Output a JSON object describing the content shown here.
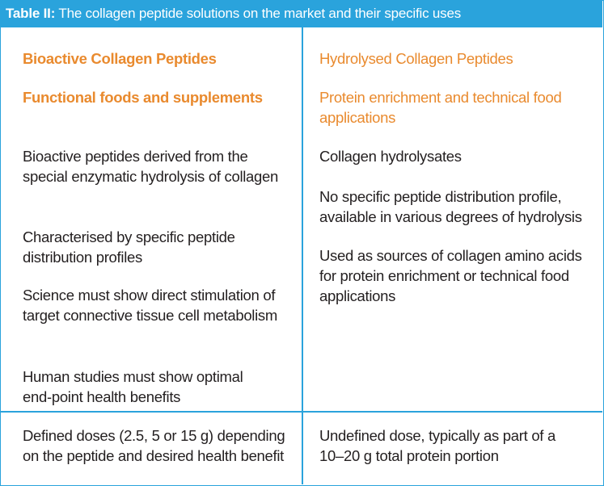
{
  "table": {
    "caption_label": "Table II:",
    "caption_text": " The collagen peptide solutions on the market and their specific uses",
    "left": {
      "heading": "Bioactive Collagen Peptides",
      "subheading": "Functional foods and supplements",
      "points": [
        "Bioactive peptides derived from the special enzymatic hydrolysis of collagen",
        "Characterised by specific peptide distribution profiles",
        "Science must show direct stimulation of target connective tissue cell metabolism",
        "Human studies must show optimal end-point health benefits"
      ],
      "dose": "Defined doses (2.5, 5 or 15 g) depending on the peptide and desired health benefit"
    },
    "right": {
      "heading": "Hydrolysed Collagen Peptides",
      "subheading": "Protein enrichment and technical food applications",
      "points": [
        "Collagen hydrolysates",
        "No specific peptide distribution profile, available in various degrees of hydrolysis",
        "Used as sources of collagen amino acids for protein enrichment or technical food applications"
      ],
      "dose": "Undefined dose, typically as part of a 10–20 g total protein portion"
    }
  },
  "colors": {
    "accent_blue": "#2aa3dc",
    "accent_orange": "#e98a2e",
    "text": "#231f20"
  }
}
